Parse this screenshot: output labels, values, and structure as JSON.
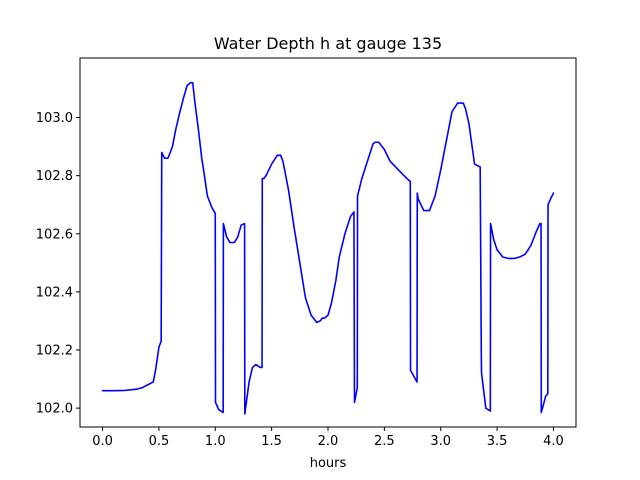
{
  "chart_data": {
    "type": "line",
    "title": "Water Depth h at gauge 135",
    "xlabel": "hours",
    "ylabel": "",
    "xlim": [
      -0.2,
      4.2
    ],
    "ylim": [
      101.935,
      103.205
    ],
    "xticks": [
      0.0,
      0.5,
      1.0,
      1.5,
      2.0,
      2.5,
      3.0,
      3.5,
      4.0
    ],
    "xtick_labels": [
      "0.0",
      "0.5",
      "1.0",
      "1.5",
      "2.0",
      "2.5",
      "3.0",
      "3.5",
      "4.0"
    ],
    "yticks": [
      102.0,
      102.2,
      102.4,
      102.6,
      102.8,
      103.0
    ],
    "ytick_labels": [
      "102.0",
      "102.2",
      "102.4",
      "102.6",
      "102.8",
      "103.0"
    ],
    "grid": false,
    "series": [
      {
        "color": "#0000ff",
        "x": [
          0.0,
          0.1,
          0.2,
          0.3,
          0.35,
          0.4,
          0.45,
          0.47,
          0.5,
          0.52,
          0.525,
          0.55,
          0.58,
          0.62,
          0.65,
          0.68,
          0.72,
          0.75,
          0.78,
          0.8,
          0.82,
          0.85,
          0.88,
          0.9,
          0.93,
          0.97,
          1.0,
          1.002,
          1.03,
          1.07,
          1.072,
          1.1,
          1.13,
          1.17,
          1.2,
          1.23,
          1.26,
          1.262,
          1.3,
          1.33,
          1.36,
          1.4,
          1.415,
          1.417,
          1.43,
          1.45,
          1.5,
          1.55,
          1.58,
          1.6,
          1.65,
          1.7,
          1.75,
          1.8,
          1.85,
          1.9,
          1.93,
          1.95,
          1.97,
          2.0,
          2.03,
          2.07,
          2.1,
          2.15,
          2.2,
          2.23,
          2.235,
          2.26,
          2.262,
          2.3,
          2.35,
          2.4,
          2.42,
          2.45,
          2.5,
          2.55,
          2.6,
          2.65,
          2.7,
          2.73,
          2.732,
          2.79,
          2.792,
          2.8,
          2.85,
          2.9,
          2.95,
          3.0,
          3.05,
          3.1,
          3.15,
          3.2,
          3.22,
          3.25,
          3.3,
          3.35,
          3.36,
          3.362,
          3.4,
          3.44,
          3.442,
          3.47,
          3.5,
          3.55,
          3.6,
          3.65,
          3.7,
          3.75,
          3.8,
          3.85,
          3.88,
          3.89,
          3.892,
          3.91,
          3.93,
          3.95,
          3.952,
          3.98,
          4.0
        ],
        "y": [
          102.06,
          102.06,
          102.061,
          102.065,
          102.07,
          102.08,
          102.09,
          102.13,
          102.21,
          102.23,
          102.88,
          102.86,
          102.86,
          102.9,
          102.96,
          103.01,
          103.07,
          103.11,
          103.12,
          103.12,
          103.05,
          102.96,
          102.86,
          102.81,
          102.73,
          102.69,
          102.67,
          102.02,
          101.995,
          101.985,
          102.635,
          102.59,
          102.57,
          102.57,
          102.59,
          102.63,
          102.635,
          101.98,
          102.09,
          102.14,
          102.15,
          102.14,
          102.14,
          102.79,
          102.79,
          102.8,
          102.84,
          102.87,
          102.87,
          102.85,
          102.75,
          102.62,
          102.5,
          102.38,
          102.32,
          102.295,
          102.3,
          102.31,
          102.31,
          102.32,
          102.36,
          102.44,
          102.52,
          102.6,
          102.66,
          102.675,
          102.02,
          102.07,
          102.73,
          102.79,
          102.85,
          102.91,
          102.915,
          102.915,
          102.89,
          102.85,
          102.83,
          102.81,
          102.79,
          102.78,
          102.13,
          102.09,
          102.74,
          102.72,
          102.68,
          102.68,
          102.73,
          102.82,
          102.92,
          103.02,
          103.05,
          103.05,
          103.03,
          102.98,
          102.84,
          102.83,
          102.18,
          102.12,
          102.0,
          101.99,
          102.635,
          102.58,
          102.545,
          102.52,
          102.515,
          102.515,
          102.52,
          102.53,
          102.56,
          102.61,
          102.635,
          102.635,
          101.985,
          102.01,
          102.04,
          102.05,
          102.7,
          102.725,
          102.74
        ]
      }
    ]
  }
}
